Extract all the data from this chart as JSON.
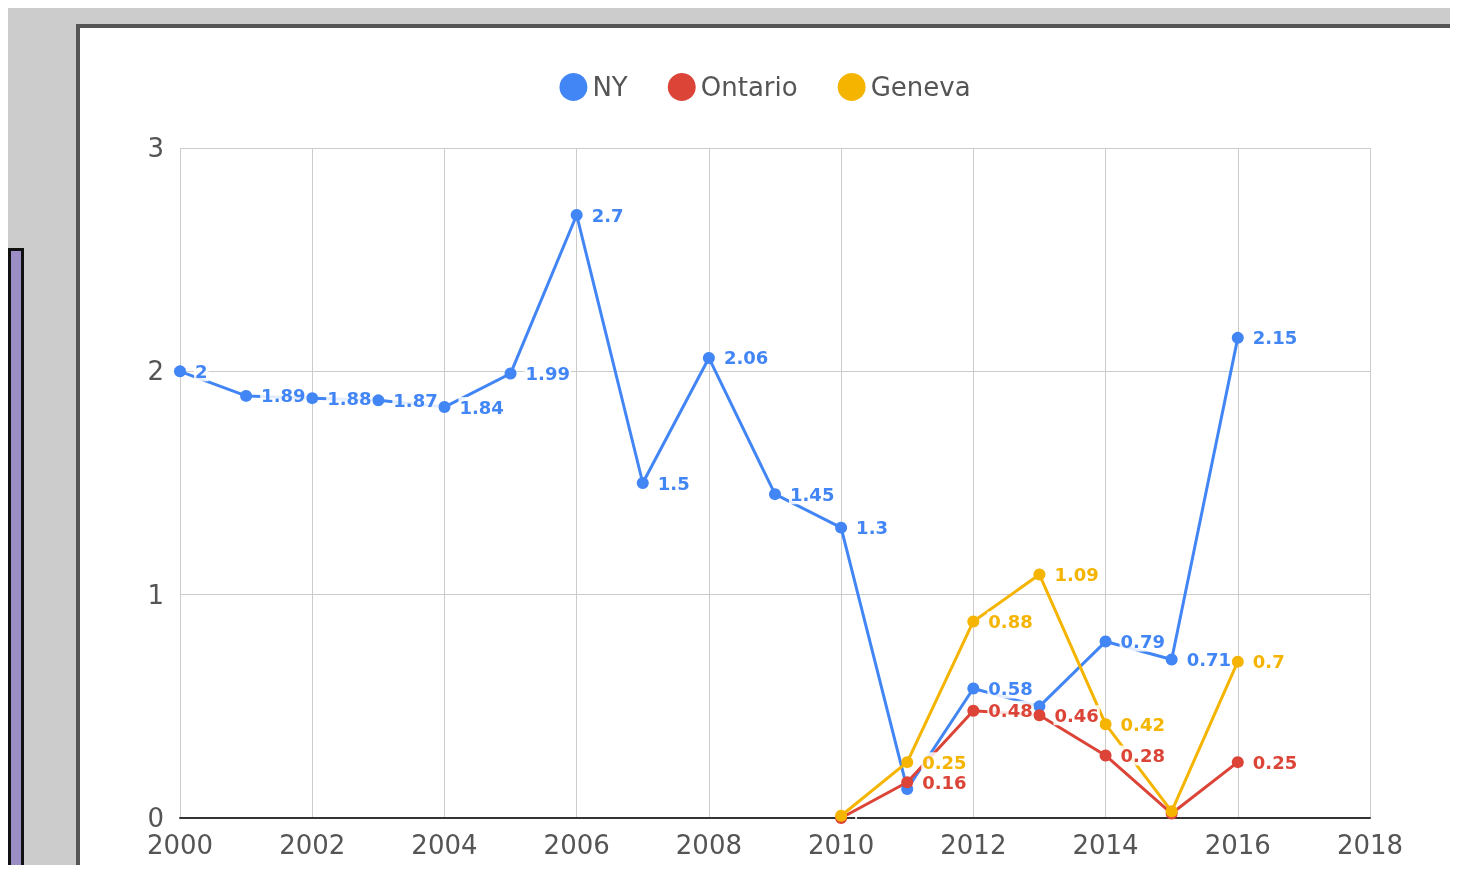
{
  "chart_data": {
    "type": "line",
    "x": [
      2000,
      2001,
      2002,
      2003,
      2004,
      2005,
      2006,
      2007,
      2008,
      2009,
      2010,
      2011,
      2012,
      2013,
      2014,
      2015,
      2016
    ],
    "series": [
      {
        "name": "NY",
        "color": "#4285f4",
        "values": [
          2,
          1.89,
          1.88,
          1.87,
          1.84,
          1.99,
          2.7,
          1.5,
          2.06,
          1.45,
          1.3,
          0.13,
          0.58,
          0.5,
          0.79,
          0.71,
          2.15
        ],
        "value_labels": [
          "2",
          "1.89",
          "1.88",
          "1.87",
          "1.84",
          "1.99",
          "2.7",
          "1.5",
          "2.06",
          "1.45",
          "1.3",
          null,
          "0.58",
          null,
          "0.79",
          "0.71",
          "2.15"
        ]
      },
      {
        "name": "Ontario",
        "color": "#db4437",
        "values": [
          null,
          null,
          null,
          null,
          null,
          null,
          null,
          null,
          null,
          null,
          0,
          0.16,
          0.48,
          0.46,
          0.28,
          0.02,
          0.25
        ],
        "value_labels": [
          null,
          null,
          null,
          null,
          null,
          null,
          null,
          null,
          null,
          null,
          null,
          "0.16",
          "0.48",
          "0.46",
          "0.28",
          null,
          "0.25"
        ]
      },
      {
        "name": "Geneva",
        "color": "#f4b400",
        "values": [
          null,
          null,
          null,
          null,
          null,
          null,
          null,
          null,
          null,
          null,
          0.01,
          0.25,
          0.88,
          1.09,
          0.42,
          0.03,
          0.7
        ],
        "value_labels": [
          null,
          null,
          null,
          null,
          null,
          null,
          null,
          null,
          null,
          null,
          null,
          "0.25",
          "0.88",
          "1.09",
          "0.42",
          null,
          "0.7"
        ]
      }
    ],
    "xlim": [
      2000,
      2018
    ],
    "xticks": [
      2000,
      2002,
      2004,
      2006,
      2008,
      2010,
      2012,
      2014,
      2016,
      2018
    ],
    "ylim": [
      0,
      3
    ],
    "yticks": [
      0,
      1,
      2,
      3
    ],
    "grid": true,
    "legend": "top",
    "marker": "circle",
    "line_style": "solid"
  }
}
